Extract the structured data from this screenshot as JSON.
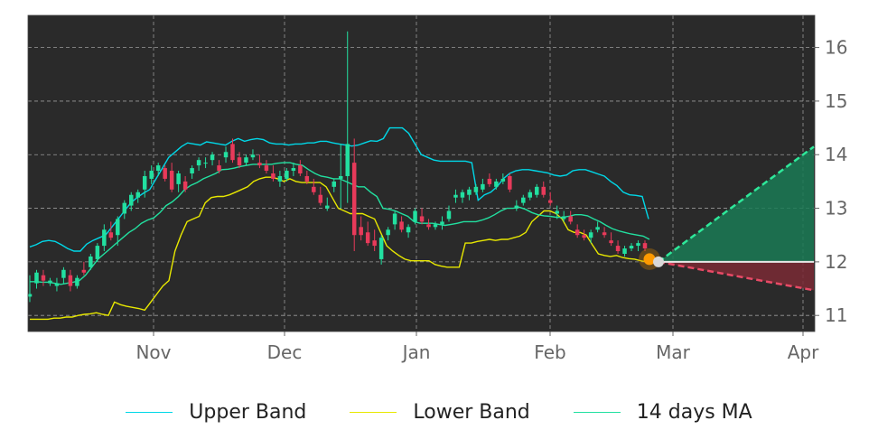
{
  "chart_data": {
    "type": "candlestick",
    "title": "",
    "xlabel": "",
    "ylabel": "",
    "x_ticks": [
      "Nov",
      "Dec",
      "Jan",
      "Feb",
      "Mar",
      "Apr"
    ],
    "y_ticks": [
      11,
      12,
      13,
      14,
      15,
      16
    ],
    "ylim": [
      10.7,
      16.6
    ],
    "y_axis_side": "right",
    "grid": true,
    "background": "#2a2a2a",
    "legend": {
      "placement": "bottom",
      "entries": [
        {
          "name": "Upper Band",
          "color": "#00d8e8"
        },
        {
          "name": "Lower Band",
          "color": "#e8e800"
        },
        {
          "name": "14 days MA",
          "color": "#22e0a0"
        }
      ]
    },
    "colors": {
      "up": "#22e0a0",
      "down": "#e83a5a",
      "grid": "#9a9a9a",
      "forecast_up": "#1a7a55",
      "forecast_down": "#7a2a35"
    },
    "series": [
      {
        "name": "Upper Band",
        "values": [
          12.28,
          12.32,
          12.38,
          12.4,
          12.38,
          12.32,
          12.25,
          12.2,
          12.2,
          12.33,
          12.4,
          12.45,
          12.5,
          12.65,
          12.8,
          12.95,
          13.1,
          13.2,
          13.28,
          13.35,
          13.55,
          13.75,
          13.95,
          14.05,
          14.15,
          14.22,
          14.2,
          14.18,
          14.24,
          14.22,
          14.2,
          14.18,
          14.25,
          14.3,
          14.25,
          14.28,
          14.3,
          14.28,
          14.22,
          14.2,
          14.2,
          14.18,
          14.2,
          14.2,
          14.22,
          14.22,
          14.25,
          14.25,
          14.22,
          14.2,
          14.18,
          14.16,
          14.18,
          14.22,
          14.26,
          14.25,
          14.3,
          14.5,
          14.5,
          14.5,
          14.4,
          14.2,
          14.0,
          13.95,
          13.9,
          13.88,
          13.88,
          13.88,
          13.88,
          13.88,
          13.85,
          13.15,
          13.25,
          13.3,
          13.4,
          13.55,
          13.65,
          13.7,
          13.72,
          13.72,
          13.7,
          13.68,
          13.66,
          13.62,
          13.6,
          13.62,
          13.7,
          13.72,
          13.72,
          13.68,
          13.64,
          13.6,
          13.5,
          13.42,
          13.3,
          13.25,
          13.24,
          13.22,
          12.8
        ]
      },
      {
        "name": "Lower Band",
        "values": [
          10.93,
          10.93,
          10.93,
          10.93,
          10.95,
          10.95,
          10.97,
          10.97,
          11.0,
          11.02,
          11.03,
          11.05,
          11.02,
          11.0,
          11.25,
          11.2,
          11.17,
          11.15,
          11.13,
          11.1,
          11.25,
          11.4,
          11.55,
          11.65,
          12.2,
          12.5,
          12.75,
          12.8,
          12.85,
          13.1,
          13.2,
          13.22,
          13.22,
          13.25,
          13.3,
          13.35,
          13.4,
          13.5,
          13.55,
          13.58,
          13.58,
          13.55,
          13.5,
          13.55,
          13.5,
          13.48,
          13.48,
          13.48,
          13.48,
          13.4,
          13.2,
          13.0,
          12.95,
          12.9,
          12.9,
          12.9,
          12.85,
          12.8,
          12.55,
          12.3,
          12.2,
          12.12,
          12.05,
          12.02,
          12.02,
          12.02,
          12.02,
          11.95,
          11.92,
          11.9,
          11.9,
          11.9,
          12.35,
          12.35,
          12.38,
          12.4,
          12.42,
          12.4,
          12.42,
          12.42,
          12.45,
          12.48,
          12.55,
          12.75,
          12.85,
          12.95,
          12.95,
          12.9,
          12.8,
          12.6,
          12.55,
          12.55,
          12.5,
          12.32,
          12.15,
          12.12,
          12.1,
          12.12,
          12.08,
          12.06,
          12.05,
          12.02,
          12.0
        ]
      },
      {
        "name": "14 days MA",
        "values": [
          11.63,
          11.63,
          11.62,
          11.62,
          11.6,
          11.58,
          11.6,
          11.62,
          11.65,
          11.75,
          11.9,
          12.05,
          12.15,
          12.25,
          12.35,
          12.45,
          12.55,
          12.62,
          12.72,
          12.78,
          12.82,
          12.92,
          13.05,
          13.12,
          13.22,
          13.35,
          13.43,
          13.48,
          13.55,
          13.6,
          13.65,
          13.72,
          13.73,
          13.75,
          13.78,
          13.8,
          13.82,
          13.82,
          13.82,
          13.82,
          13.84,
          13.85,
          13.85,
          13.82,
          13.8,
          13.72,
          13.65,
          13.6,
          13.58,
          13.55,
          13.55,
          13.5,
          13.45,
          13.4,
          13.4,
          13.3,
          13.22,
          13.0,
          12.98,
          12.95,
          12.9,
          12.85,
          12.75,
          12.72,
          12.72,
          12.72,
          12.7,
          12.68,
          12.7,
          12.72,
          12.75,
          12.75,
          12.75,
          12.78,
          12.82,
          12.88,
          12.95,
          13.0,
          13.0,
          13.02,
          12.98,
          12.92,
          12.88,
          12.86,
          12.85,
          12.83,
          12.83,
          12.85,
          12.88,
          12.88,
          12.86,
          12.8,
          12.75,
          12.68,
          12.62,
          12.58,
          12.55,
          12.52,
          12.5,
          12.48,
          12.42
        ]
      }
    ],
    "candles": [
      [
        11.35,
        11.75,
        11.25,
        11.4
      ],
      [
        11.6,
        11.85,
        11.5,
        11.8
      ],
      [
        11.75,
        11.85,
        11.55,
        11.65
      ],
      [
        11.6,
        11.7,
        11.55,
        11.65
      ],
      [
        11.55,
        11.7,
        11.45,
        11.6
      ],
      [
        11.7,
        11.9,
        11.6,
        11.85
      ],
      [
        11.75,
        11.85,
        11.45,
        11.55
      ],
      [
        11.55,
        11.75,
        11.5,
        11.7
      ],
      [
        11.85,
        12.0,
        11.75,
        11.8
      ],
      [
        11.9,
        12.15,
        11.85,
        12.1
      ],
      [
        12.05,
        12.35,
        12.0,
        12.3
      ],
      [
        12.3,
        12.7,
        12.2,
        12.6
      ],
      [
        12.55,
        12.75,
        12.4,
        12.45
      ],
      [
        12.5,
        12.85,
        12.3,
        12.8
      ],
      [
        12.9,
        13.15,
        12.8,
        13.1
      ],
      [
        13.05,
        13.3,
        12.95,
        13.25
      ],
      [
        13.2,
        13.35,
        13.1,
        13.3
      ],
      [
        13.35,
        13.7,
        13.2,
        13.6
      ],
      [
        13.55,
        13.8,
        13.45,
        13.7
      ],
      [
        13.7,
        13.85,
        13.6,
        13.8
      ],
      [
        13.75,
        13.8,
        13.5,
        13.55
      ],
      [
        13.7,
        13.85,
        13.3,
        13.35
      ],
      [
        13.45,
        13.7,
        13.3,
        13.65
      ],
      [
        13.5,
        13.6,
        13.3,
        13.35
      ],
      [
        13.65,
        13.8,
        13.55,
        13.75
      ],
      [
        13.8,
        13.95,
        13.7,
        13.9
      ],
      [
        13.85,
        13.95,
        13.75,
        13.85
      ],
      [
        13.9,
        14.05,
        13.8,
        14.0
      ],
      [
        13.8,
        13.9,
        13.65,
        13.7
      ],
      [
        13.95,
        14.15,
        13.85,
        14.05
      ],
      [
        14.2,
        14.3,
        13.85,
        13.9
      ],
      [
        13.95,
        14.05,
        13.75,
        13.8
      ],
      [
        13.85,
        14.0,
        13.8,
        13.95
      ],
      [
        13.95,
        14.1,
        13.9,
        14.0
      ],
      [
        13.85,
        14.0,
        13.75,
        13.8
      ],
      [
        13.8,
        13.9,
        13.65,
        13.7
      ],
      [
        13.65,
        13.8,
        13.5,
        13.55
      ],
      [
        13.5,
        13.7,
        13.4,
        13.6
      ],
      [
        13.55,
        13.75,
        13.5,
        13.7
      ],
      [
        13.7,
        13.85,
        13.6,
        13.75
      ],
      [
        13.8,
        13.9,
        13.6,
        13.65
      ],
      [
        13.6,
        13.7,
        13.45,
        13.5
      ],
      [
        13.4,
        13.55,
        13.25,
        13.3
      ],
      [
        13.25,
        13.4,
        13.05,
        13.1
      ],
      [
        13.0,
        13.2,
        12.95,
        13.05
      ],
      [
        13.4,
        13.55,
        13.3,
        13.5
      ],
      [
        13.55,
        14.2,
        13.0,
        13.6
      ],
      [
        13.6,
        16.3,
        13.1,
        14.2
      ],
      [
        13.85,
        14.3,
        12.2,
        12.5
      ],
      [
        12.65,
        12.85,
        12.4,
        12.5
      ],
      [
        12.55,
        12.75,
        12.3,
        12.35
      ],
      [
        12.4,
        12.6,
        12.2,
        12.3
      ],
      [
        12.05,
        12.5,
        11.95,
        12.45
      ],
      [
        12.5,
        12.65,
        12.4,
        12.6
      ],
      [
        12.7,
        12.95,
        12.6,
        12.9
      ],
      [
        12.75,
        12.85,
        12.55,
        12.6
      ],
      [
        12.55,
        12.7,
        12.45,
        12.65
      ],
      [
        12.75,
        13.0,
        12.7,
        12.95
      ],
      [
        12.85,
        13.0,
        12.7,
        12.75
      ],
      [
        12.7,
        12.8,
        12.6,
        12.65
      ],
      [
        12.65,
        12.75,
        12.6,
        12.7
      ],
      [
        12.7,
        12.85,
        12.6,
        12.75
      ],
      [
        12.8,
        13.05,
        12.75,
        12.95
      ],
      [
        13.2,
        13.35,
        13.1,
        13.25
      ],
      [
        13.2,
        13.35,
        13.1,
        13.3
      ],
      [
        13.25,
        13.4,
        13.15,
        13.35
      ],
      [
        13.3,
        13.45,
        13.25,
        13.4
      ],
      [
        13.35,
        13.55,
        13.3,
        13.45
      ],
      [
        13.55,
        13.65,
        13.4,
        13.45
      ],
      [
        13.4,
        13.55,
        13.35,
        13.5
      ],
      [
        13.5,
        13.65,
        13.45,
        13.55
      ],
      [
        13.6,
        13.65,
        13.3,
        13.35
      ],
      [
        13.0,
        13.15,
        12.95,
        13.05
      ],
      [
        13.1,
        13.25,
        13.05,
        13.2
      ],
      [
        13.2,
        13.35,
        13.15,
        13.3
      ],
      [
        13.25,
        13.45,
        13.2,
        13.4
      ],
      [
        13.4,
        13.5,
        13.2,
        13.25
      ],
      [
        13.15,
        13.3,
        13.05,
        13.1
      ],
      [
        12.9,
        13.05,
        12.8,
        12.95
      ],
      [
        12.8,
        12.95,
        12.75,
        12.85
      ],
      [
        12.85,
        12.95,
        12.7,
        12.75
      ],
      [
        12.6,
        12.7,
        12.45,
        12.5
      ],
      [
        12.5,
        12.6,
        12.4,
        12.45
      ],
      [
        12.45,
        12.6,
        12.35,
        12.55
      ],
      [
        12.6,
        12.75,
        12.55,
        12.65
      ],
      [
        12.55,
        12.65,
        12.45,
        12.5
      ],
      [
        12.4,
        12.55,
        12.3,
        12.35
      ],
      [
        12.3,
        12.4,
        12.15,
        12.2
      ],
      [
        12.15,
        12.3,
        12.1,
        12.25
      ],
      [
        12.25,
        12.35,
        12.2,
        12.3
      ],
      [
        12.3,
        12.4,
        12.2,
        12.35
      ],
      [
        12.35,
        12.4,
        12.2,
        12.25
      ]
    ],
    "latest_close": 12.05,
    "reference_value": 12.0,
    "forecast": {
      "upper_end": 14.15,
      "lower_end": 11.47
    }
  }
}
